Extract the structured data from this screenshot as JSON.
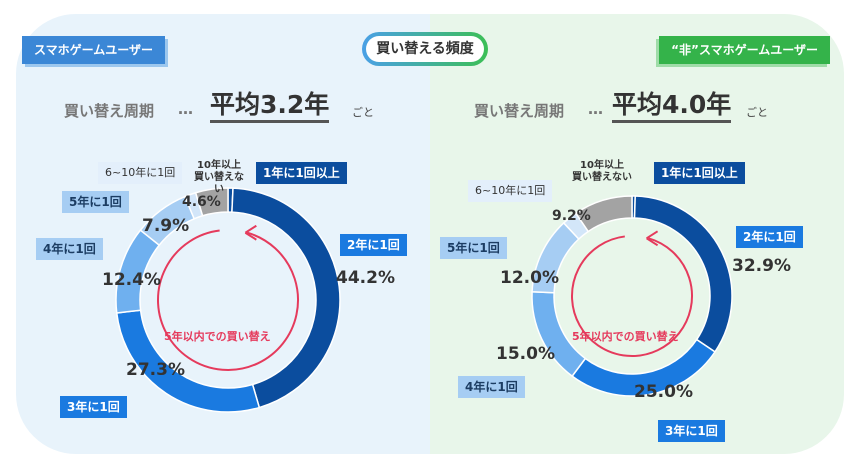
{
  "center_title": "買い替える頻度",
  "left": {
    "tag": "スマホゲームユーザー",
    "cycle_label": "買い替え周期",
    "dots": "…",
    "average": "平均3.2年",
    "suffix": "ごと",
    "inner_label": "5年以内での買い替え"
  },
  "right": {
    "tag": "“非”スマホゲームユーザー",
    "cycle_label": "買い替え周期",
    "dots": "…",
    "average": "平均4.0年",
    "suffix": "ごと",
    "inner_label": "5年以内での買い替え"
  },
  "colors": {
    "seg_1y": "#0b4d9e",
    "seg_2y": "#0b4d9e",
    "seg_3y": "#1a7ae0",
    "seg_4y": "#6fb0ef",
    "seg_5y": "#a6cdf3",
    "seg_6_10y": "#d3e6f9",
    "seg_10y_plus": "#a3a3a3",
    "accent_red": "#e53a5c"
  },
  "chart_data": [
    {
      "type": "pie",
      "title": "スマホゲームユーザー",
      "categories": [
        "1年に1回以上",
        "2年に1回",
        "3年に1回",
        "4年に1回",
        "5年に1回",
        "6~10年に1回",
        "10年以上\n買い替えない"
      ],
      "values": [
        null,
        44.2,
        27.3,
        12.4,
        7.9,
        null,
        4.6
      ],
      "labels": [
        "",
        "44.2%",
        "27.3%",
        "12.4%",
        "7.9%",
        "",
        "4.6%"
      ]
    },
    {
      "type": "pie",
      "title": "“非”スマホゲームユーザー",
      "categories": [
        "1年に1回以上",
        "2年に1回",
        "3年に1回",
        "4年に1回",
        "5年に1回",
        "6~10年に1回",
        "10年以上\n買い替えない"
      ],
      "values": [
        null,
        32.9,
        25.0,
        15.0,
        12.0,
        null,
        9.2
      ],
      "labels": [
        "",
        "32.9%",
        "25.0%",
        "15.0%",
        "12.0%",
        "",
        "9.2%"
      ]
    }
  ]
}
